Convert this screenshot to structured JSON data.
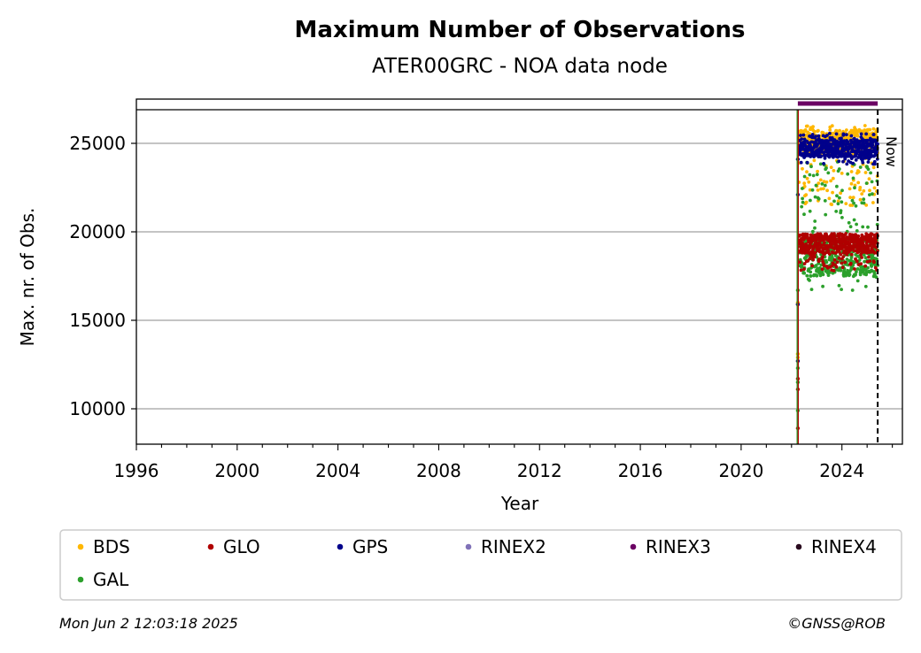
{
  "chart_data": {
    "type": "scatter",
    "title": "Maximum Number of Observations",
    "subtitle": "ATER00GRC - NOA data node",
    "xlabel": "Year",
    "ylabel": "Max. nr. of Obs.",
    "xlim": [
      1996,
      2026.4
    ],
    "ylim": [
      8000,
      27500
    ],
    "x_ticks": [
      "1996",
      "2000",
      "2004",
      "2008",
      "2012",
      "2016",
      "2020",
      "2024"
    ],
    "y_ticks": [
      "10000",
      "15000",
      "20000",
      "25000"
    ],
    "grid": "horizontal",
    "legend_position": "bottom",
    "now_label": "Now",
    "now_x": 2025.42,
    "start_x": 2022.25,
    "rinex_band_y": 26900,
    "series": [
      {
        "name": "BDS",
        "color": "#ffb700",
        "x_range": [
          2022.25,
          2025.42
        ],
        "band": [
          21500,
          26000
        ],
        "dense_band": [
          24400,
          25800
        ],
        "startup": [
          13100,
          12900,
          12700,
          16000
        ]
      },
      {
        "name": "GLO",
        "color": "#b00000",
        "x_range": [
          2022.25,
          2025.42
        ],
        "band": [
          17800,
          19900
        ],
        "dense_band": [
          18800,
          19900
        ],
        "startup": [
          8900,
          11100,
          11700,
          15900
        ]
      },
      {
        "name": "GPS",
        "color": "#00008b",
        "x_range": [
          2022.25,
          2025.42
        ],
        "band": [
          23800,
          25600
        ],
        "dense_band": [
          24200,
          25200
        ],
        "startup": [
          12700,
          15900,
          22100,
          24100
        ]
      },
      {
        "name": "RINEX2",
        "color": "#8072b8"
      },
      {
        "name": "RINEX3",
        "color": "#6b0063"
      },
      {
        "name": "RINEX4",
        "color": "#2a0a1f"
      },
      {
        "name": "GAL",
        "color": "#2ca02c",
        "x_range": [
          2022.25,
          2025.42
        ],
        "band": [
          16700,
          24000
        ],
        "dense_band": [
          17500,
          19600
        ],
        "startup": [
          9900,
          11500,
          12300,
          16700
        ]
      }
    ]
  },
  "footer": {
    "timestamp": "Mon Jun  2 12:03:18 2025",
    "credit": "©GNSS@ROB"
  },
  "colors": {
    "grid": "#b0b0b0",
    "legend_border": "#cccccc"
  }
}
